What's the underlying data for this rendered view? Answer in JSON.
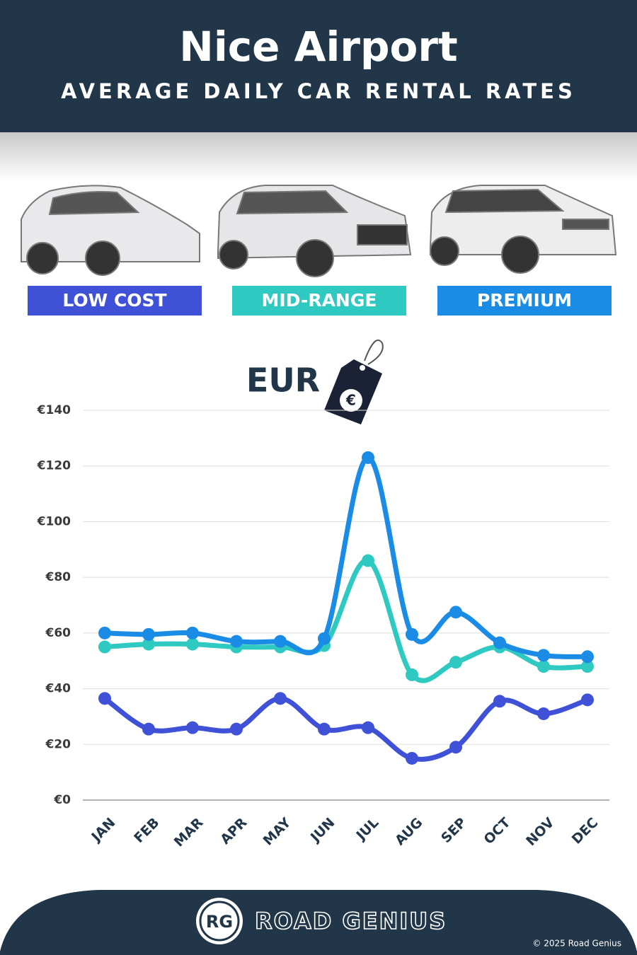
{
  "chart_data": {
    "type": "line",
    "title": "Nice Airport",
    "subtitle": "AVERAGE DAILY CAR RENTAL RATES",
    "currency_label": "EUR",
    "categories": [
      "JAN",
      "FEB",
      "MAR",
      "APR",
      "MAY",
      "JUN",
      "JUL",
      "AUG",
      "SEP",
      "OCT",
      "NOV",
      "DEC"
    ],
    "series": [
      {
        "name": "LOW COST",
        "color": "#3f51d6",
        "values": [
          36.5,
          25.5,
          26,
          25.5,
          36.5,
          25.5,
          26,
          15,
          19,
          35.5,
          31,
          36
        ]
      },
      {
        "name": "MID-RANGE",
        "color": "#2ec9c0",
        "values": [
          55,
          56,
          56,
          55,
          55,
          55.5,
          86,
          45,
          49.5,
          55,
          48,
          48
        ]
      },
      {
        "name": "PREMIUM",
        "color": "#1a8ce6",
        "values": [
          60,
          59.5,
          60,
          57,
          57,
          58,
          123,
          59.5,
          67.5,
          56.5,
          52,
          51.5
        ]
      }
    ],
    "ylim": [
      0,
      140
    ],
    "yticks": [
      {
        "value": 0,
        "label": "€0"
      },
      {
        "value": 20,
        "label": "€20"
      },
      {
        "value": 40,
        "label": "€40"
      },
      {
        "value": 60,
        "label": "€60"
      },
      {
        "value": 80,
        "label": "€80"
      },
      {
        "value": 100,
        "label": "€100"
      },
      {
        "value": 120,
        "label": "€120"
      },
      {
        "value": 140,
        "label": "€140"
      }
    ],
    "grid": true
  },
  "footer": {
    "logo": "RG",
    "brand": "ROAD GENIUS",
    "copyright": "© 2025 Road Genius"
  }
}
